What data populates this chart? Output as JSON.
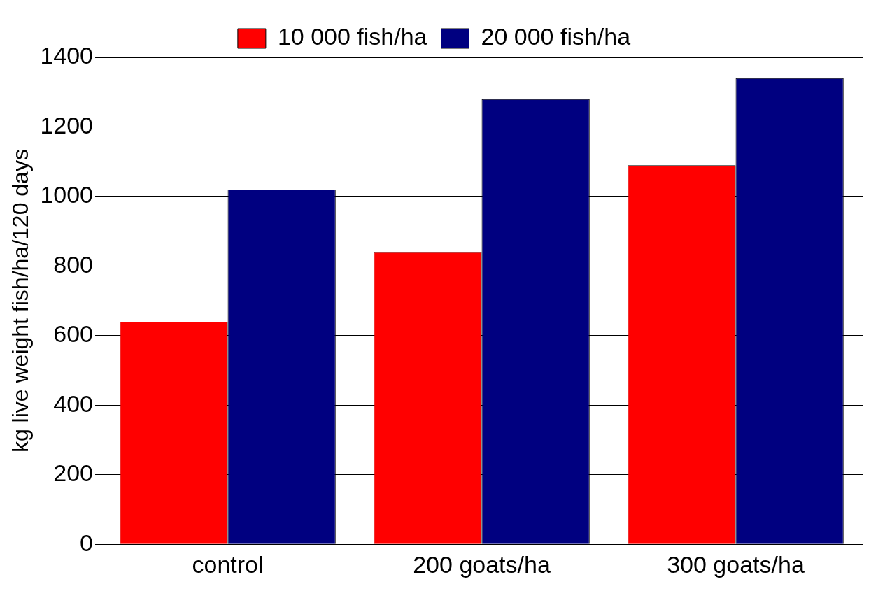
{
  "chart_data": {
    "type": "bar",
    "ylabel": "kg live weight fish/ha/120 days",
    "categories": [
      "control",
      "200 goats/ha",
      "300 goats/ha"
    ],
    "series": [
      {
        "name": "10 000 fish/ha",
        "color": "#ff0000",
        "values": [
          640,
          840,
          1090
        ]
      },
      {
        "name": "20 000 fish/ha",
        "color": "#000080",
        "values": [
          1020,
          1280,
          1340
        ]
      }
    ],
    "ylim": [
      0,
      1400
    ],
    "yticks": [
      0,
      200,
      400,
      600,
      800,
      1000,
      1200,
      1400
    ],
    "grid": "y",
    "legend": "top"
  }
}
